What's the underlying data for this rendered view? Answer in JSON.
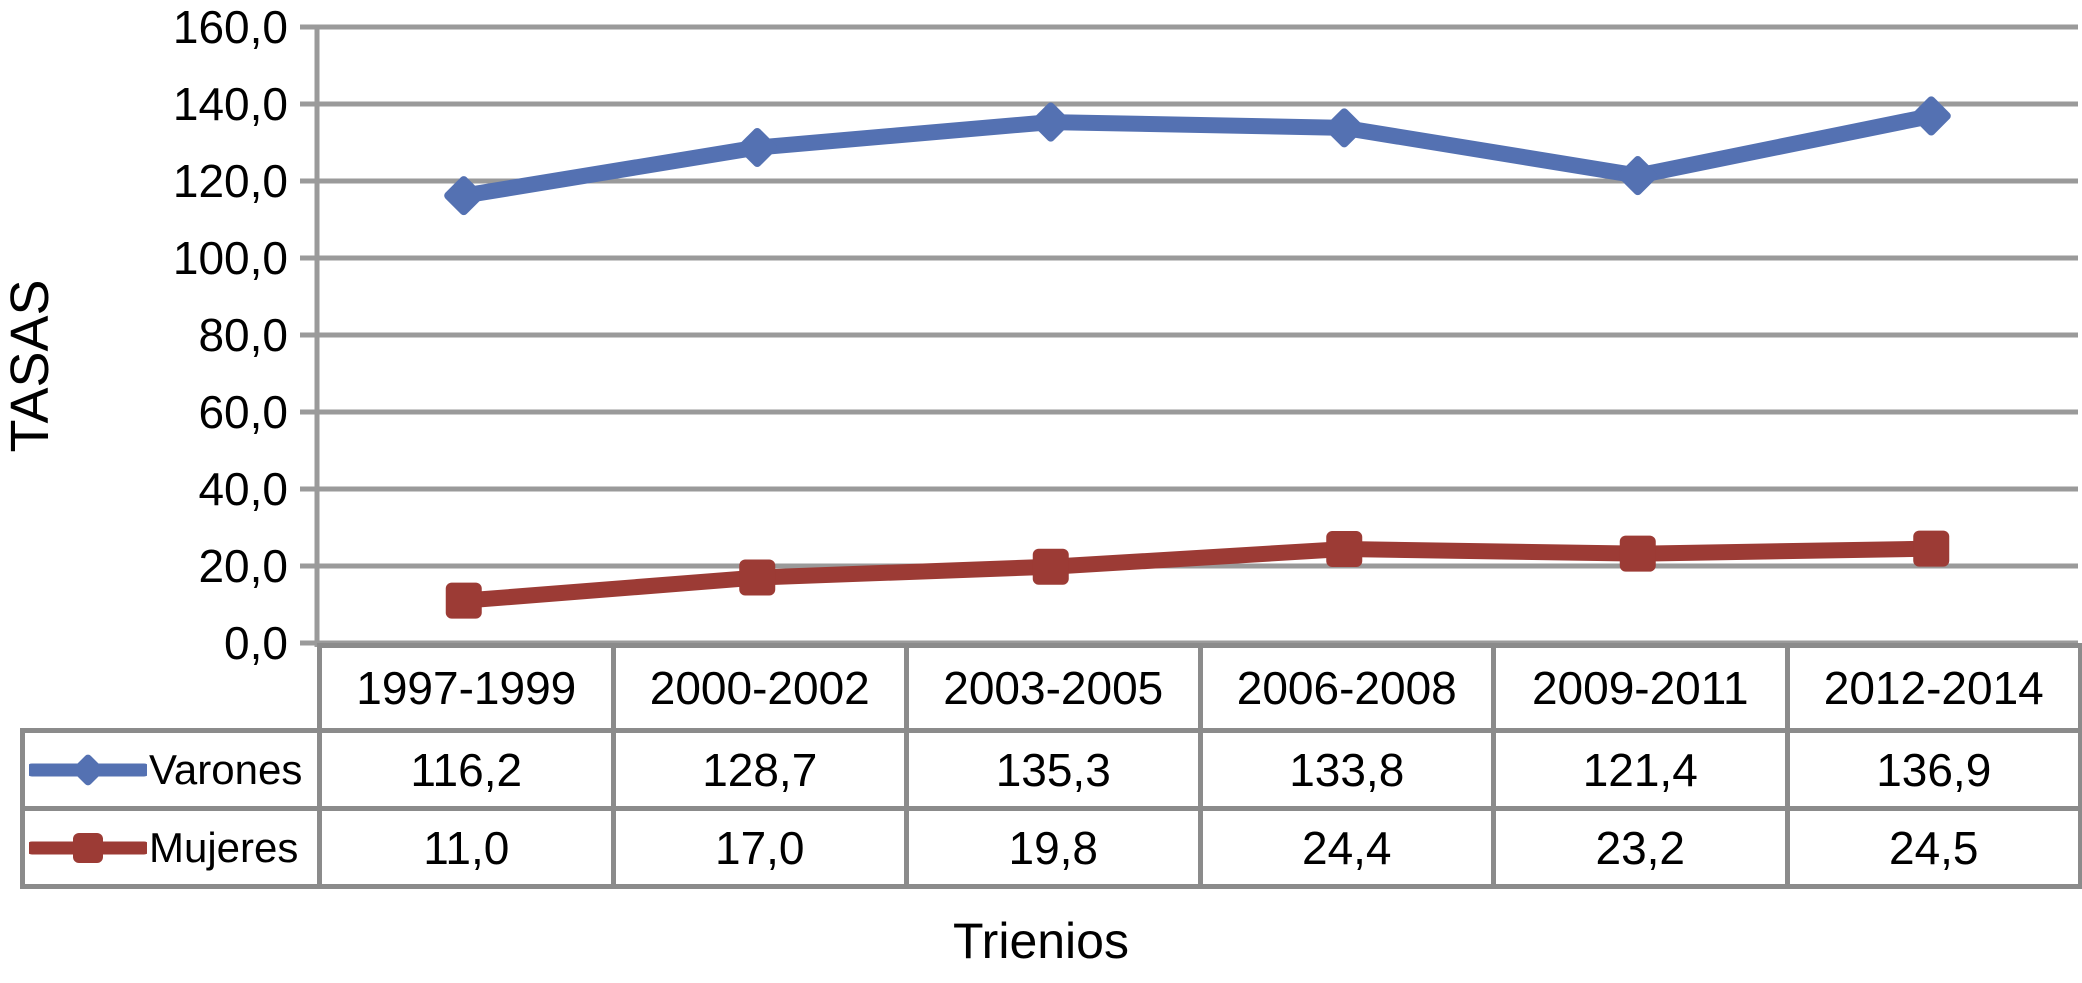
{
  "chart_data": {
    "type": "line",
    "title": "",
    "xlabel": "Trienios",
    "ylabel": "TASAS",
    "categories": [
      "1997-1999",
      "2000-2002",
      "2003-2005",
      "2006-2008",
      "2009-2011",
      "2012-2014"
    ],
    "series": [
      {
        "name": "Varones",
        "values": [
          116.2,
          128.7,
          135.3,
          133.8,
          121.4,
          136.9
        ],
        "display_values": [
          "116,2",
          "128,7",
          "135,3",
          "133,8",
          "121,4",
          "136,9"
        ],
        "color": "#5471B2",
        "marker": "diamond"
      },
      {
        "name": "Mujeres",
        "values": [
          11.0,
          17.0,
          19.8,
          24.4,
          23.2,
          24.5
        ],
        "display_values": [
          "11,0",
          "17,0",
          "19,8",
          "24,4",
          "23,2",
          "24,5"
        ],
        "color": "#9C3B35",
        "marker": "square"
      }
    ],
    "ylim": [
      0,
      160
    ],
    "ytick_step": 20,
    "ytick_labels": [
      "0,0",
      "20,0",
      "40,0",
      "60,0",
      "80,0",
      "100,0",
      "120,0",
      "140,0",
      "160,0"
    ],
    "grid": true,
    "legend_position": "table-left",
    "colors": {
      "gridline": "#9A9A9A",
      "axis": "#9A9A9A",
      "table_border": "#8B8B8B",
      "text": "#000000",
      "background": "#FFFFFF"
    }
  }
}
